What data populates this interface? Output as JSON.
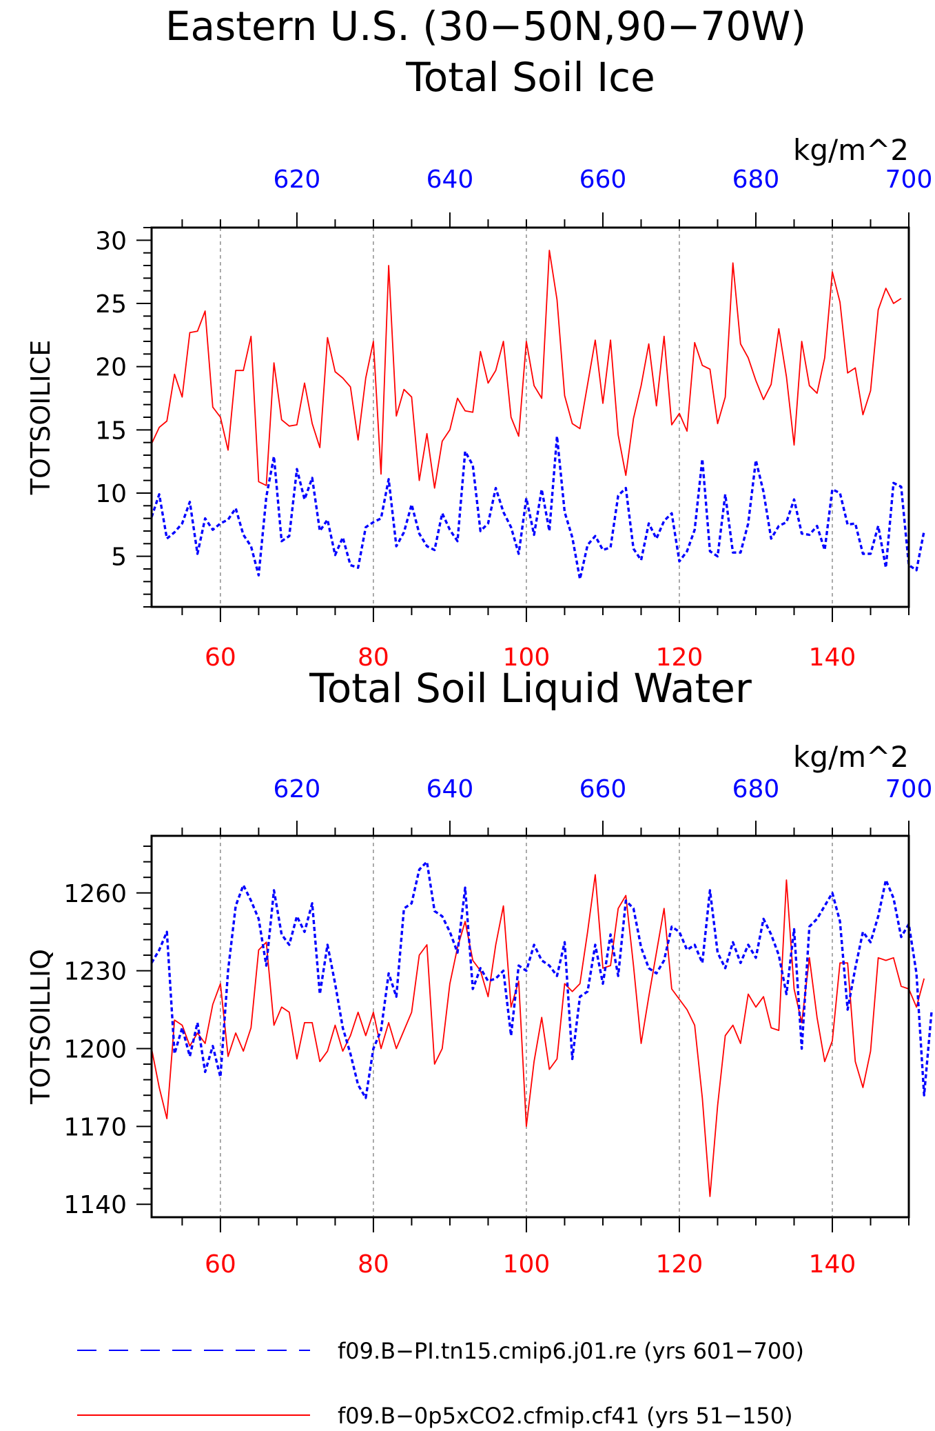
{
  "figure": {
    "title_line1": "Eastern U.S. (30−50N,90−70W)",
    "colors": {
      "red": "#ff0000",
      "blue": "#0000ff",
      "axis": "#000000",
      "grid": "#555555"
    }
  },
  "legend": [
    {
      "label": "f09.B−PI.tn15.cmip6.j01.re (yrs 601−700)",
      "color": "#0000ff",
      "style": "dashed"
    },
    {
      "label": "f09.B−0p5xCO2.cfmip.cf41 (yrs 51−150)",
      "color": "#ff0000",
      "style": "solid"
    }
  ],
  "chart_data": [
    {
      "type": "line",
      "title": "Total Soil Ice",
      "ylabel": "TOTSOILICE",
      "units": "kg/m^2",
      "ylim": [
        1,
        31
      ],
      "yticks": [
        5,
        10,
        15,
        20,
        25,
        30
      ],
      "bottom_xlim": [
        51,
        150
      ],
      "bottom_xticks": [
        60,
        80,
        100,
        120,
        140
      ],
      "top_xlim": [
        601,
        700
      ],
      "top_xticks": [
        620,
        640,
        660,
        680,
        700
      ],
      "grid": "dashed vertical lines at bottom major ticks",
      "series": [
        {
          "name": "f09.B−0p5xCO2.cfmip.cf41 (yrs 51−150)",
          "axis": "bottom",
          "color": "#ff0000",
          "style": "solid",
          "x_start": 51,
          "values": [
            13.9,
            15.2,
            15.7,
            19.4,
            17.6,
            22.7,
            22.8,
            24.4,
            16.8,
            16.0,
            13.4,
            19.7,
            19.7,
            22.4,
            10.9,
            10.6,
            20.3,
            15.8,
            15.3,
            15.4,
            18.7,
            15.5,
            13.6,
            22.3,
            19.6,
            19.1,
            18.4,
            14.2,
            19.1,
            22.0,
            11.5,
            28.0,
            16.1,
            18.2,
            17.6,
            11.0,
            14.7,
            10.4,
            14.1,
            15.0,
            17.5,
            16.5,
            16.4,
            21.2,
            18.7,
            19.7,
            22.0,
            16.0,
            14.5,
            22.0,
            18.5,
            17.5,
            29.2,
            25.3,
            17.7,
            15.5,
            15.1,
            18.6,
            22.1,
            17.1,
            22.1,
            14.6,
            11.4,
            15.9,
            18.5,
            21.8,
            16.9,
            22.4,
            15.4,
            16.3,
            14.9,
            21.9,
            20.1,
            19.8,
            15.5,
            17.6,
            28.2,
            21.8,
            20.7,
            18.9,
            17.4,
            18.6,
            23.0,
            19.2,
            13.8,
            22.0,
            18.5,
            17.9,
            20.7,
            27.5,
            25.1,
            19.5,
            19.9,
            16.2,
            18.1,
            24.5,
            26.2,
            25.0,
            25.4
          ]
        },
        {
          "name": "f09.B−PI.tn15.cmip6.j01.re (yrs 601−700)",
          "axis": "top",
          "color": "#0000ff",
          "style": "dashed",
          "x_start": 601,
          "values": [
            8.1,
            9.9,
            6.4,
            6.9,
            7.6,
            9.3,
            5.2,
            8.0,
            7.1,
            7.6,
            7.9,
            8.8,
            6.7,
            5.8,
            3.5,
            9.7,
            12.9,
            6.2,
            6.6,
            11.9,
            9.5,
            11.2,
            7.0,
            7.9,
            5.1,
            6.5,
            4.3,
            4.1,
            7.3,
            7.7,
            8.0,
            11.1,
            5.8,
            6.9,
            9.1,
            6.8,
            5.8,
            5.5,
            8.4,
            7.1,
            6.2,
            13.3,
            12.2,
            7.0,
            7.6,
            10.4,
            8.5,
            7.3,
            5.2,
            9.6,
            6.7,
            10.3,
            7.0,
            14.5,
            8.5,
            6.5,
            3.2,
            5.9,
            6.6,
            5.5,
            5.7,
            9.8,
            10.4,
            5.6,
            4.7,
            7.6,
            6.4,
            7.8,
            8.4,
            4.6,
            5.4,
            7.1,
            12.7,
            5.4,
            5.0,
            9.9,
            5.3,
            5.3,
            7.6,
            12.6,
            10.1,
            6.4,
            7.4,
            7.7,
            9.5,
            6.8,
            6.7,
            7.4,
            5.5,
            10.3,
            10.0,
            7.5,
            7.6,
            5.2,
            5.2,
            7.4,
            4.1,
            10.8,
            10.5,
            4.3,
            3.9,
            7.0
          ]
        }
      ]
    },
    {
      "type": "line",
      "title": "Total Soil Liquid Water",
      "ylabel": "TOTSOILLIQ",
      "units": "kg/m^2",
      "ylim": [
        1135,
        1282
      ],
      "yticks": [
        1140,
        1170,
        1200,
        1230,
        1260
      ],
      "bottom_xlim": [
        51,
        150
      ],
      "bottom_xticks": [
        60,
        80,
        100,
        120,
        140
      ],
      "top_xlim": [
        601,
        700
      ],
      "top_xticks": [
        620,
        640,
        660,
        680,
        700
      ],
      "grid": "dashed vertical lines at bottom major ticks",
      "series": [
        {
          "name": "f09.B−0p5xCO2.cfmip.cf41 (yrs 51−150)",
          "axis": "bottom",
          "color": "#ff0000",
          "style": "solid",
          "x_start": 51,
          "values": [
            1200,
            1185,
            1173,
            1211,
            1209,
            1201,
            1206,
            1202,
            1217,
            1225,
            1197,
            1206,
            1199,
            1208,
            1238,
            1241,
            1209,
            1216,
            1214,
            1196,
            1210,
            1210,
            1195,
            1199,
            1209,
            1199,
            1205,
            1214,
            1205,
            1214,
            1200,
            1210,
            1200,
            1207,
            1214,
            1236,
            1240,
            1194,
            1200,
            1225,
            1239,
            1249,
            1234,
            1230,
            1220,
            1240,
            1255,
            1216,
            1226,
            1170,
            1195,
            1212,
            1192,
            1196,
            1225,
            1222,
            1225,
            1245,
            1267,
            1231,
            1232,
            1254,
            1259,
            1232,
            1202,
            1220,
            1237,
            1254,
            1223,
            1219,
            1215,
            1209,
            1181,
            1143,
            1178,
            1205,
            1209,
            1202,
            1221,
            1216,
            1220,
            1208,
            1207,
            1265,
            1223,
            1210,
            1235,
            1212,
            1195,
            1203,
            1233,
            1233,
            1195,
            1185,
            1199,
            1235,
            1234,
            1235,
            1224,
            1223,
            1216,
            1227
          ]
        },
        {
          "name": "f09.B−PI.tn15.cmip6.j01.re (yrs 601−700)",
          "axis": "top",
          "color": "#0000ff",
          "style": "dashed",
          "x_start": 601,
          "values": [
            1233,
            1238,
            1245,
            1198,
            1208,
            1197,
            1210,
            1191,
            1201,
            1189,
            1230,
            1255,
            1263,
            1257,
            1250,
            1232,
            1261,
            1244,
            1240,
            1251,
            1245,
            1256,
            1221,
            1240,
            1225,
            1208,
            1198,
            1186,
            1181,
            1200,
            1207,
            1229,
            1220,
            1254,
            1256,
            1269,
            1272,
            1253,
            1251,
            1245,
            1237,
            1262,
            1223,
            1231,
            1226,
            1227,
            1230,
            1205,
            1232,
            1230,
            1240,
            1234,
            1232,
            1228,
            1241,
            1196,
            1220,
            1222,
            1240,
            1225,
            1244,
            1228,
            1257,
            1254,
            1239,
            1231,
            1229,
            1234,
            1247,
            1245,
            1238,
            1240,
            1233,
            1261,
            1237,
            1231,
            1241,
            1233,
            1240,
            1235,
            1250,
            1244,
            1236,
            1221,
            1246,
            1200,
            1247,
            1250,
            1255,
            1260,
            1249,
            1215,
            1231,
            1245,
            1241,
            1251,
            1265,
            1258,
            1243,
            1248,
            1229,
            1182,
            1215
          ]
        }
      ]
    }
  ]
}
